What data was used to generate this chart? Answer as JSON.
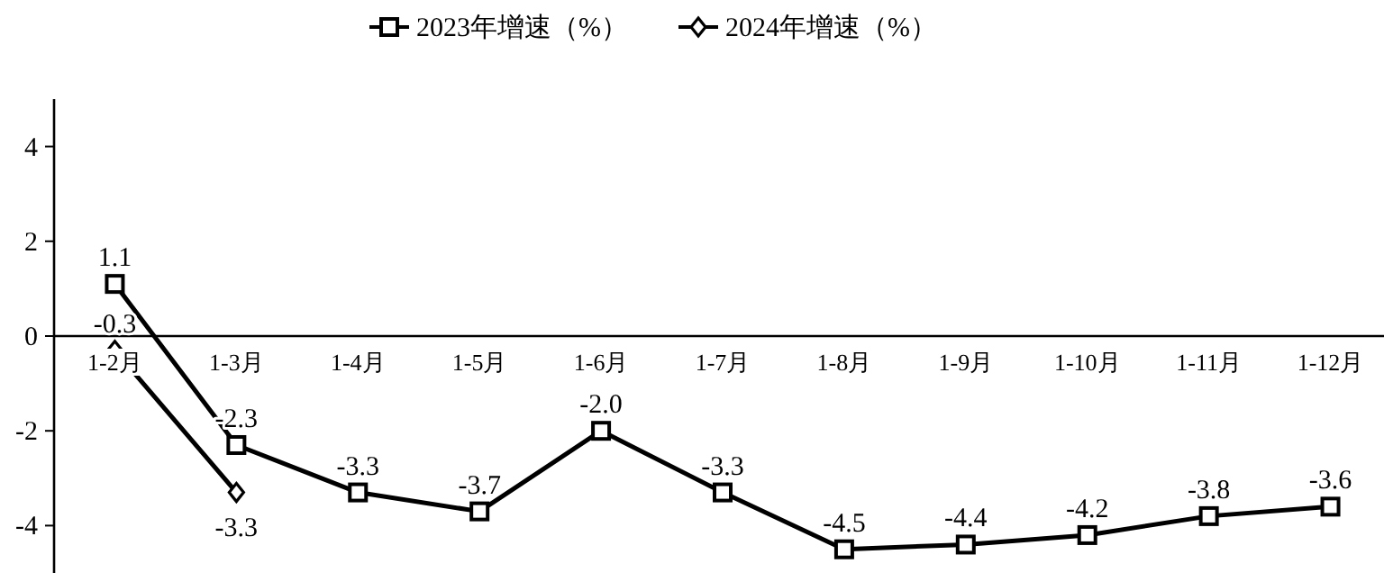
{
  "chart_data": {
    "type": "line",
    "categories": [
      "1-2月",
      "1-3月",
      "1-4月",
      "1-5月",
      "1-6月",
      "1-7月",
      "1-8月",
      "1-9月",
      "1-10月",
      "1-11月",
      "1-12月"
    ],
    "series": [
      {
        "name": "2023年增速（%）",
        "color": "#000000",
        "marker": "square",
        "values": [
          1.1,
          -2.3,
          -3.3,
          -3.7,
          -2.0,
          -3.3,
          -4.5,
          -4.4,
          -4.2,
          -3.8,
          -3.6
        ],
        "value_labels": [
          "1.1",
          "-2.3",
          "-3.3",
          "-3.7",
          "-2.0",
          "-3.3",
          "-4.5",
          "-4.4",
          "-4.2",
          "-3.8",
          "-3.6"
        ]
      },
      {
        "name": "2024年增速（%）",
        "color": "#000000",
        "marker": "diamond",
        "values": [
          -0.3,
          -3.3,
          null,
          null,
          null,
          null,
          null,
          null,
          null,
          null,
          null
        ],
        "value_labels": [
          "-0.3",
          "-3.3",
          null,
          null,
          null,
          null,
          null,
          null,
          null,
          null,
          null
        ]
      }
    ],
    "ylim": [
      -5,
      5
    ],
    "yticks": [
      -4,
      -2,
      0,
      2,
      4
    ],
    "legend": "top",
    "grid": false,
    "line_style": "solid"
  }
}
